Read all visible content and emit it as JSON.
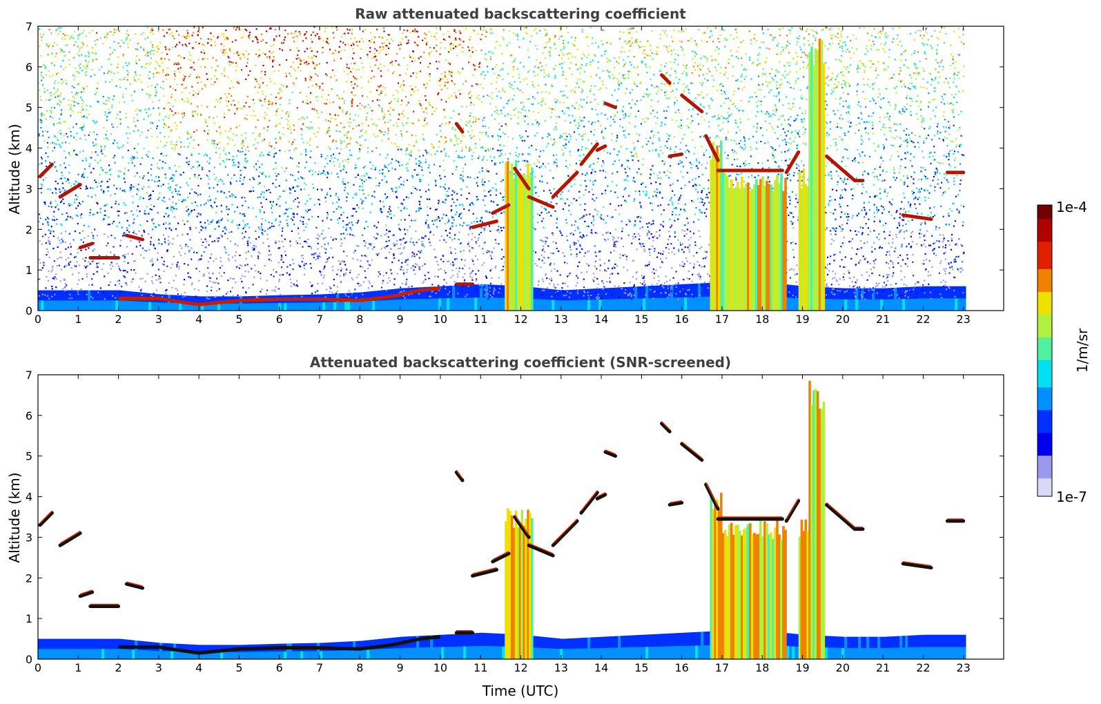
{
  "colors": {
    "colormap": [
      "#ffffff",
      "#d9d9f5",
      "#9999ee",
      "#0000f0",
      "#0030ff",
      "#0090ff",
      "#00e0f0",
      "#50f0a0",
      "#b0f040",
      "#f0e000",
      "#f08000",
      "#e02000",
      "#b00000",
      "#700000"
    ],
    "axis": "#000000",
    "title_text": "#404040",
    "cloud_core": "#101010"
  },
  "chart_data": [
    {
      "type": "heatmap",
      "title": "Raw attenuated backscattering coefficient",
      "xlabel": "",
      "ylabel": "Altitude (km)",
      "xlim": [
        0,
        24
      ],
      "ylim": [
        0,
        7
      ],
      "x_ticks": [
        "0",
        "1",
        "2",
        "3",
        "4",
        "5",
        "6",
        "7",
        "8",
        "9",
        "10",
        "11",
        "12",
        "13",
        "14",
        "15",
        "16",
        "17",
        "18",
        "19",
        "20",
        "21",
        "22",
        "23"
      ],
      "y_ticks": [
        "0",
        "1",
        "2",
        "3",
        "4",
        "5",
        "6",
        "7"
      ],
      "data_end_time": 23.0,
      "noise_background": "strong noise increasing with altitude; highest (orange/red) between 3 and 11 UTC above 4 km",
      "boundary_layer": [
        {
          "t": 0.0,
          "z": 0.5
        },
        {
          "t": 1.0,
          "z": 0.5
        },
        {
          "t": 2.0,
          "z": 0.5
        },
        {
          "t": 3.0,
          "z": 0.4
        },
        {
          "t": 4.0,
          "z": 0.35
        },
        {
          "t": 5.0,
          "z": 0.35
        },
        {
          "t": 6.0,
          "z": 0.38
        },
        {
          "t": 7.0,
          "z": 0.4
        },
        {
          "t": 8.0,
          "z": 0.45
        },
        {
          "t": 9.0,
          "z": 0.55
        },
        {
          "t": 10.0,
          "z": 0.6
        },
        {
          "t": 11.0,
          "z": 0.65
        },
        {
          "t": 12.0,
          "z": 0.6
        },
        {
          "t": 13.0,
          "z": 0.5
        },
        {
          "t": 14.0,
          "z": 0.55
        },
        {
          "t": 15.0,
          "z": 0.6
        },
        {
          "t": 16.0,
          "z": 0.65
        },
        {
          "t": 17.0,
          "z": 0.7
        },
        {
          "t": 18.0,
          "z": 0.7
        },
        {
          "t": 19.0,
          "z": 0.6
        },
        {
          "t": 20.0,
          "z": 0.55
        },
        {
          "t": 21.0,
          "z": 0.55
        },
        {
          "t": 22.0,
          "z": 0.6
        },
        {
          "t": 23.0,
          "z": 0.6
        }
      ],
      "aerosol_top_layer": [
        {
          "t": 2.0,
          "z": 0.3
        },
        {
          "t": 3.0,
          "z": 0.3
        },
        {
          "t": 3.5,
          "z": 0.22
        },
        {
          "t": 4.0,
          "z": 0.15
        },
        {
          "t": 4.5,
          "z": 0.2
        },
        {
          "t": 5.0,
          "z": 0.25
        },
        {
          "t": 6.0,
          "z": 0.28
        },
        {
          "t": 7.0,
          "z": 0.28
        },
        {
          "t": 8.0,
          "z": 0.25
        },
        {
          "t": 8.8,
          "z": 0.35
        },
        {
          "t": 9.5,
          "z": 0.5
        },
        {
          "t": 10.0,
          "z": 0.55
        }
      ],
      "cloud_layers": [
        {
          "t0": 0.05,
          "t1": 0.35,
          "z0": 3.3,
          "z1": 3.6
        },
        {
          "t0": 0.55,
          "t1": 1.05,
          "z0": 2.8,
          "z1": 3.1
        },
        {
          "t0": 1.05,
          "t1": 1.35,
          "z0": 1.55,
          "z1": 1.65
        },
        {
          "t0": 1.3,
          "t1": 2.0,
          "z0": 1.3,
          "z1": 1.3
        },
        {
          "t0": 2.2,
          "t1": 2.6,
          "z0": 1.85,
          "z1": 1.75
        },
        {
          "t0": 10.4,
          "t1": 10.55,
          "z0": 4.6,
          "z1": 4.4
        },
        {
          "t0": 10.4,
          "t1": 10.8,
          "z0": 0.65,
          "z1": 0.65
        },
        {
          "t0": 10.8,
          "t1": 11.4,
          "z0": 2.05,
          "z1": 2.2
        },
        {
          "t0": 11.3,
          "t1": 11.7,
          "z0": 2.4,
          "z1": 2.6
        },
        {
          "t0": 11.85,
          "t1": 12.2,
          "z0": 3.5,
          "z1": 3.0
        },
        {
          "t0": 12.2,
          "t1": 12.8,
          "z0": 2.8,
          "z1": 2.55
        },
        {
          "t0": 12.8,
          "t1": 13.4,
          "z0": 2.8,
          "z1": 3.4
        },
        {
          "t0": 13.5,
          "t1": 13.9,
          "z0": 3.6,
          "z1": 4.1
        },
        {
          "t0": 13.9,
          "t1": 14.1,
          "z0": 3.95,
          "z1": 4.05
        },
        {
          "t0": 14.1,
          "t1": 14.35,
          "z0": 5.1,
          "z1": 5.0
        },
        {
          "t0": 15.5,
          "t1": 15.7,
          "z0": 5.8,
          "z1": 5.6
        },
        {
          "t0": 15.7,
          "t1": 16.0,
          "z0": 3.8,
          "z1": 3.85
        },
        {
          "t0": 16.0,
          "t1": 16.5,
          "z0": 5.3,
          "z1": 4.9
        },
        {
          "t0": 16.6,
          "t1": 16.9,
          "z0": 4.3,
          "z1": 3.7
        },
        {
          "t0": 16.9,
          "t1": 18.5,
          "z0": 3.45,
          "z1": 3.45
        },
        {
          "t0": 18.6,
          "t1": 18.9,
          "z0": 3.4,
          "z1": 3.9
        },
        {
          "t0": 19.6,
          "t1": 20.3,
          "z0": 3.8,
          "z1": 3.2
        },
        {
          "t0": 20.3,
          "t1": 20.5,
          "z0": 3.2,
          "z1": 3.2
        },
        {
          "t0": 21.5,
          "t1": 22.2,
          "z0": 2.35,
          "z1": 2.25
        },
        {
          "t0": 22.6,
          "t1": 23.0,
          "z0": 3.4,
          "z1": 3.4
        }
      ],
      "vertical_plumes": [
        {
          "t0": 11.6,
          "t1": 12.3,
          "z": 3.8
        },
        {
          "t0": 16.7,
          "t1": 17.0,
          "z": 4.2
        },
        {
          "t0": 17.0,
          "t1": 18.6,
          "z": 3.45
        },
        {
          "t0": 18.9,
          "t1": 19.3,
          "z": 3.5
        },
        {
          "t0": 19.15,
          "t1": 19.55,
          "z": 7.0
        }
      ]
    },
    {
      "type": "heatmap",
      "title": "Attenuated backscattering coefficient (SNR-screened)",
      "xlabel": "Time (UTC)",
      "ylabel": "Altitude (km)",
      "xlim": [
        0,
        24
      ],
      "ylim": [
        0,
        7
      ],
      "x_ticks": [
        "0",
        "1",
        "2",
        "3",
        "4",
        "5",
        "6",
        "7",
        "8",
        "9",
        "10",
        "11",
        "12",
        "13",
        "14",
        "15",
        "16",
        "17",
        "18",
        "19",
        "20",
        "21",
        "22",
        "23"
      ],
      "y_ticks": [
        "0",
        "1",
        "2",
        "3",
        "4",
        "5",
        "6",
        "7"
      ],
      "data_end_time": 23.0,
      "noise_background": "screened out (white)"
    }
  ],
  "colorbar": {
    "top_label": "1e-4",
    "bottom_label": "1e-7",
    "unit_label": "1/m/sr"
  }
}
